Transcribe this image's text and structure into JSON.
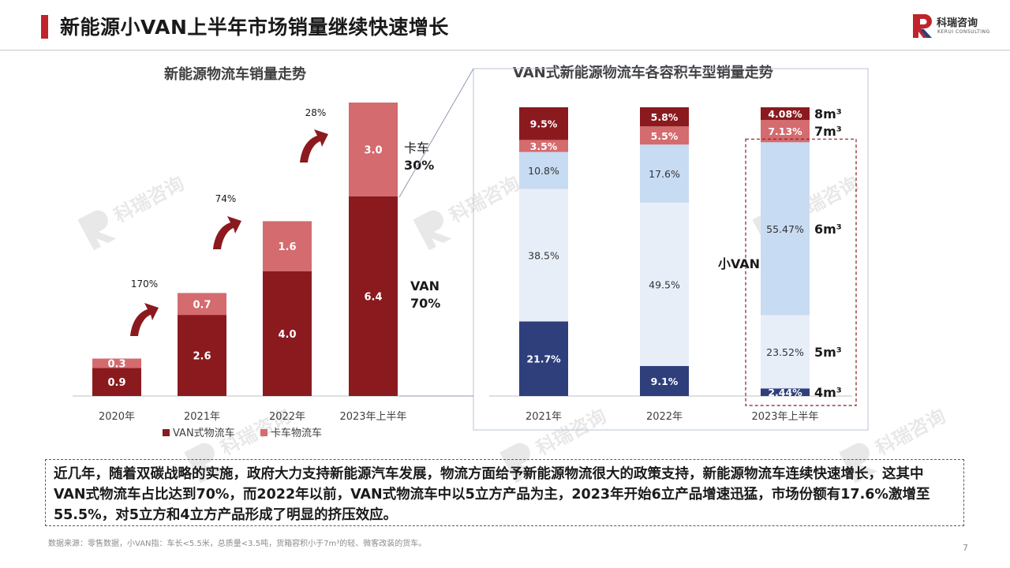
{
  "header": {
    "title": "新能源小VAN上半年市场销量继续快速增长",
    "logo_cn": "科瑞咨询",
    "logo_en": "KERUI CONSULTING"
  },
  "watermark": {
    "cn": "科瑞咨询",
    "en": "KERUI CONSULTING"
  },
  "colors": {
    "van": "#8b1a1f",
    "truck": "#d46b6e",
    "vol_8m3": "#8b1a1f",
    "vol_7m3": "#d46b6e",
    "vol_6m3": "#c7dbf2",
    "vol_5m3": "#e8eef8",
    "vol_4m3": "#2e3f7c",
    "accent": "#c0232c"
  },
  "chart_data": [
    {
      "type": "bar",
      "stacked": true,
      "title": "新能源物流车销量走势",
      "categories": [
        "2020年",
        "2021年",
        "2022年",
        "2023年上半年"
      ],
      "series": [
        {
          "name": "VAN式物流车",
          "values": [
            0.9,
            2.6,
            4.0,
            6.4
          ]
        },
        {
          "name": "卡车物流车",
          "values": [
            0.3,
            0.7,
            1.6,
            3.0
          ]
        }
      ],
      "growth_labels": [
        "170%",
        "74%",
        "28%"
      ],
      "share_labels": {
        "truck_name": "卡车",
        "truck_share": "30%",
        "van_name": "VAN",
        "van_share": "70%"
      },
      "legend": "bottom",
      "ylim": [
        0,
        10
      ]
    },
    {
      "type": "bar",
      "stacked": true,
      "percent": true,
      "title": "VAN式新能源物流车各容积车型销量走势",
      "categories": [
        "2021年",
        "2022年",
        "2023年上半年"
      ],
      "series": [
        {
          "name": "4m³",
          "values": [
            21.7,
            9.1,
            2.44
          ],
          "labels": [
            "21.7%",
            "9.1%",
            "2.44%"
          ]
        },
        {
          "name": "5m³",
          "values": [
            38.5,
            49.5,
            23.52
          ],
          "labels": [
            "38.5%",
            "49.5%",
            "23.52%"
          ]
        },
        {
          "name": "6m³",
          "values": [
            10.8,
            17.6,
            55.47
          ],
          "labels": [
            "10.8%",
            "17.6%",
            "55.47%"
          ]
        },
        {
          "name": "7m³",
          "values": [
            3.5,
            5.5,
            7.13
          ],
          "labels": [
            "3.5%",
            "5.5%",
            "7.13%"
          ]
        },
        {
          "name": "8m³",
          "values": [
            9.5,
            5.8,
            4.08
          ],
          "labels": [
            "9.5%",
            "5.8%",
            "4.08%"
          ]
        }
      ],
      "xiaovan_label": "小VAN"
    }
  ],
  "summary": "近几年，随着双碳战略的实施，政府大力支持新能源汽车发展，物流方面给予新能源物流很大的政策支持，新能源物流车连续快速增长，这其中VAN式物流车占比达到70%，而2022年以前，VAN式物流车中以5立方产品为主，2023年开始6立产品增速迅猛，市场份额有17.6%激增至55.5%，对5立方和4立方产品形成了明显的挤压效应。",
  "source": "数据来源：零售数据，小VAN指：车长<5.5米，总质量<3.5吨，货箱容积小于7m³的轻、微客改装的货车。",
  "page_number": "7"
}
